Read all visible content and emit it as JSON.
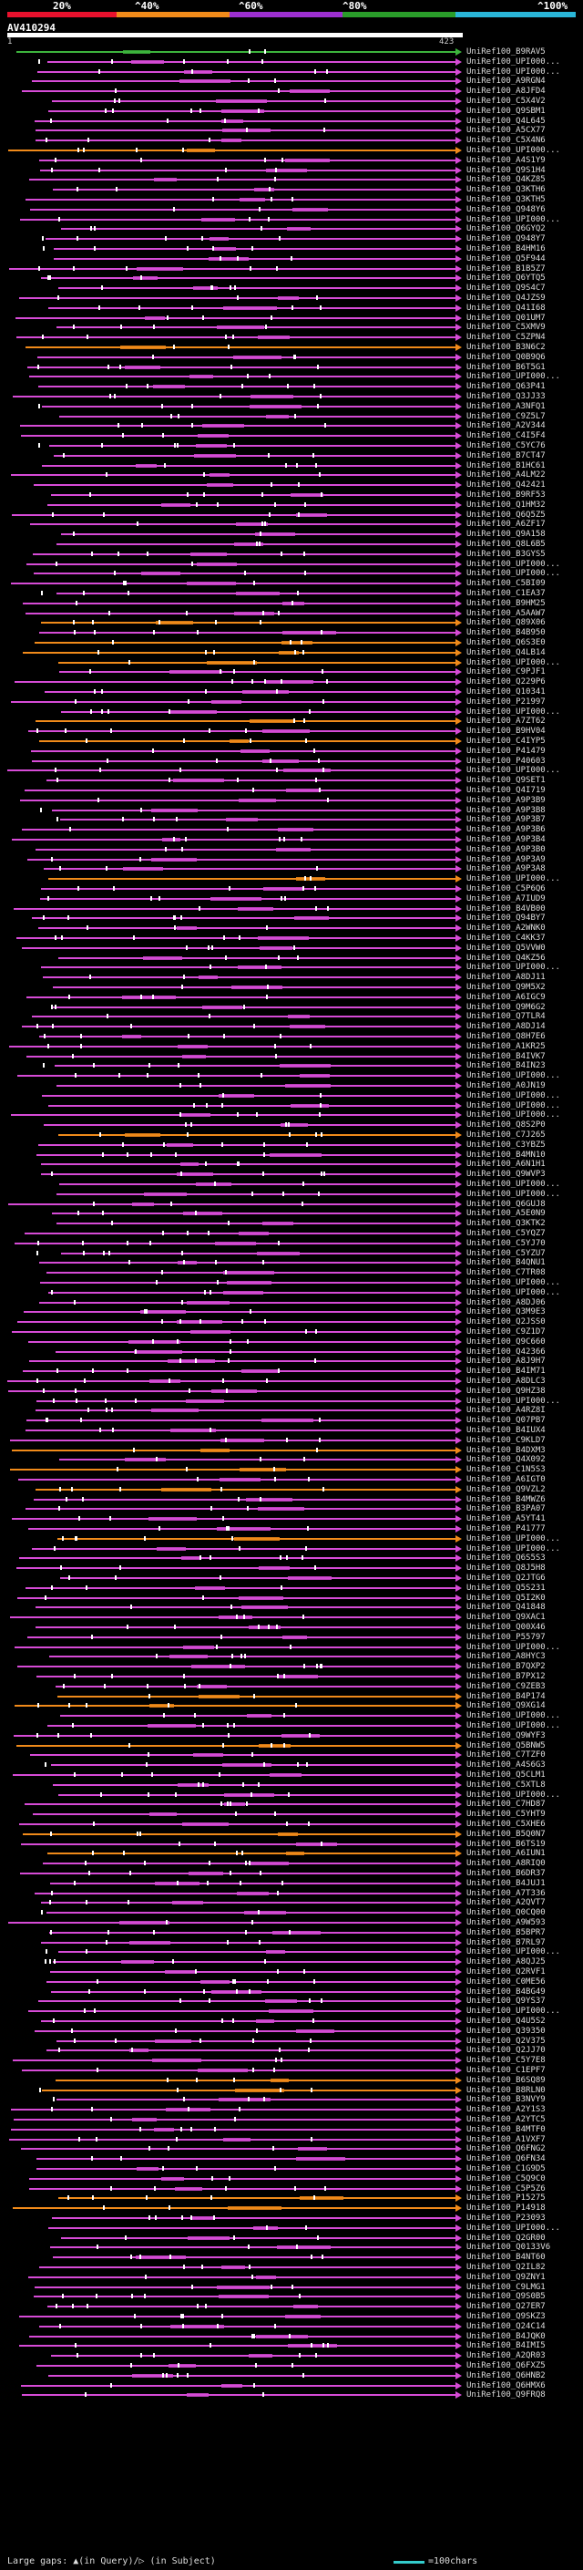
{
  "legend": {
    "labels": [
      "20%",
      "^40%",
      "^60%",
      "^80%",
      "^100%"
    ],
    "colors": [
      "#e8112d",
      "#f28b1a",
      "#9d2fd0",
      "#2a9d2a",
      "#2ab6d8"
    ]
  },
  "query": {
    "name": "AV410294",
    "start": "1",
    "end": "423"
  },
  "colors": {
    "magenta": "#d64bd6",
    "orange": "#f08a1a",
    "green": "#3db43d",
    "white": "#ffffff",
    "arrow": "#d64bd6"
  },
  "hits": [
    {
      "label": "UniRef100_B9RAV5",
      "color": "green"
    },
    {
      "label": "UniRef100_UPI000...",
      "color": "magenta"
    },
    {
      "label": "UniRef100_UPI000...",
      "color": "magenta"
    },
    {
      "label": "UniRef100_A9RGN4",
      "color": "magenta"
    },
    {
      "label": "UniRef100_A8JFD4",
      "color": "magenta"
    },
    {
      "label": "UniRef100_C5X4V2",
      "color": "magenta"
    },
    {
      "label": "UniRef100_Q9SBM1",
      "color": "magenta"
    },
    {
      "label": "UniRef100_Q4L645",
      "color": "magenta"
    },
    {
      "label": "UniRef100_A5CX77",
      "color": "magenta"
    },
    {
      "label": "UniRef100_C5X4N6",
      "color": "magenta"
    },
    {
      "label": "UniRef100_UPI000...",
      "color": "orange"
    },
    {
      "label": "UniRef100_A4S1Y9",
      "color": "magenta"
    },
    {
      "label": "UniRef100_Q9S1H4",
      "color": "magenta"
    },
    {
      "label": "UniRef100_Q4KZ85",
      "color": "magenta"
    },
    {
      "label": "UniRef100_Q3KTH6",
      "color": "magenta"
    },
    {
      "label": "UniRef100_Q3KTH5",
      "color": "magenta"
    },
    {
      "label": "UniRef100_Q948Y6",
      "color": "magenta"
    },
    {
      "label": "UniRef100_UPI000...",
      "color": "magenta"
    },
    {
      "label": "UniRef100_Q6GYQ2",
      "color": "magenta"
    },
    {
      "label": "UniRef100_Q948Y7",
      "color": "magenta"
    },
    {
      "label": "UniRef100_B4HM16",
      "color": "magenta"
    },
    {
      "label": "UniRef100_Q5F944",
      "color": "magenta"
    },
    {
      "label": "UniRef100_B1B5Z7",
      "color": "magenta"
    },
    {
      "label": "UniRef100_Q6YTQ5",
      "color": "magenta"
    },
    {
      "label": "UniRef100_Q9S4C7",
      "color": "magenta"
    },
    {
      "label": "UniRef100_Q4JZS9",
      "color": "magenta"
    },
    {
      "label": "UniRef100_Q41I68",
      "color": "magenta"
    },
    {
      "label": "UniRef100_Q01UM7",
      "color": "magenta"
    },
    {
      "label": "UniRef100_C5XMV9",
      "color": "magenta"
    },
    {
      "label": "UniRef100_C5ZPN4",
      "color": "magenta"
    },
    {
      "label": "UniRef100_B3N6C2",
      "color": "orange"
    },
    {
      "label": "UniRef100_Q0B9Q6",
      "color": "magenta"
    },
    {
      "label": "UniRef100_B6T5G1",
      "color": "magenta"
    },
    {
      "label": "UniRef100_UPI000...",
      "color": "magenta"
    },
    {
      "label": "UniRef100_Q63P41",
      "color": "magenta"
    },
    {
      "label": "UniRef100_Q3JJ33",
      "color": "magenta"
    },
    {
      "label": "UniRef100_A3NFQ1",
      "color": "magenta"
    },
    {
      "label": "UniRef100_C9Z5L7",
      "color": "magenta"
    },
    {
      "label": "UniRef100_A2V344",
      "color": "magenta"
    },
    {
      "label": "UniRef100_C4I5F4",
      "color": "magenta"
    },
    {
      "label": "UniRef100_C5YC76",
      "color": "magenta"
    },
    {
      "label": "UniRef100_B7CT47",
      "color": "magenta"
    },
    {
      "label": "UniRef100_B1HC61",
      "color": "magenta"
    },
    {
      "label": "UniRef100_A4LM22",
      "color": "magenta"
    },
    {
      "label": "UniRef100_Q42421",
      "color": "magenta"
    },
    {
      "label": "UniRef100_B9RF53",
      "color": "magenta"
    },
    {
      "label": "UniRef100_Q1HM32",
      "color": "magenta"
    },
    {
      "label": "UniRef100_Q6Q5Z5",
      "color": "magenta"
    },
    {
      "label": "UniRef100_A6ZF17",
      "color": "magenta"
    },
    {
      "label": "UniRef100_Q9A158",
      "color": "magenta"
    },
    {
      "label": "UniRef100_Q8L6B5",
      "color": "magenta"
    },
    {
      "label": "UniRef100_B3GYS5",
      "color": "magenta"
    },
    {
      "label": "UniRef100_UPI000...",
      "color": "magenta"
    },
    {
      "label": "UniRef100_UPI000...",
      "color": "magenta"
    },
    {
      "label": "UniRef100_C5BI09",
      "color": "magenta"
    },
    {
      "label": "UniRef100_C1EA37",
      "color": "magenta"
    },
    {
      "label": "UniRef100_B9HM25",
      "color": "magenta"
    },
    {
      "label": "UniRef100_A5AAW7",
      "color": "magenta"
    },
    {
      "label": "UniRef100_Q89X06",
      "color": "orange"
    },
    {
      "label": "UniRef100_B4B950",
      "color": "magenta"
    },
    {
      "label": "UniRef100_Q6S3E0",
      "color": "orange"
    },
    {
      "label": "UniRef100_Q4LB14",
      "color": "orange"
    },
    {
      "label": "UniRef100_UPI000...",
      "color": "orange"
    },
    {
      "label": "UniRef100_C9PJF1",
      "color": "magenta"
    },
    {
      "label": "UniRef100_Q229P6",
      "color": "magenta"
    },
    {
      "label": "UniRef100_Q10341",
      "color": "magenta"
    },
    {
      "label": "UniRef100_P21997",
      "color": "magenta"
    },
    {
      "label": "UniRef100_UPI000...",
      "color": "magenta"
    },
    {
      "label": "UniRef100_A7ZT62",
      "color": "orange"
    },
    {
      "label": "UniRef100_B9HV04",
      "color": "magenta"
    },
    {
      "label": "UniRef100_C4IYP5",
      "color": "orange"
    },
    {
      "label": "UniRef100_P41479",
      "color": "magenta"
    },
    {
      "label": "UniRef100_P40603",
      "color": "magenta"
    },
    {
      "label": "UniRef100_UPI000...",
      "color": "magenta"
    },
    {
      "label": "UniRef100_Q9SET1",
      "color": "magenta"
    },
    {
      "label": "UniRef100_Q4I719",
      "color": "magenta"
    },
    {
      "label": "UniRef100_A9P3B9",
      "color": "magenta"
    },
    {
      "label": "UniRef100_A9P3B8",
      "color": "magenta"
    },
    {
      "label": "UniRef100_A9P3B7",
      "color": "magenta"
    },
    {
      "label": "UniRef100_A9P3B6",
      "color": "magenta"
    },
    {
      "label": "UniRef100_A9P3B4",
      "color": "magenta"
    },
    {
      "label": "UniRef100_A9P3B0",
      "color": "magenta"
    },
    {
      "label": "UniRef100_A9P3A9",
      "color": "magenta"
    },
    {
      "label": "UniRef100_A9P3A8",
      "color": "magenta"
    },
    {
      "label": "UniRef100_UPI000...",
      "color": "orange"
    },
    {
      "label": "UniRef100_C5P6Q6",
      "color": "magenta"
    },
    {
      "label": "UniRef100_A7IUD9",
      "color": "magenta"
    },
    {
      "label": "UniRef100_B4VB00",
      "color": "magenta"
    },
    {
      "label": "UniRef100_Q94BY7",
      "color": "magenta"
    },
    {
      "label": "UniRef100_A2WNK0",
      "color": "magenta"
    },
    {
      "label": "UniRef100_C4KK37",
      "color": "magenta"
    },
    {
      "label": "UniRef100_Q5VVW0",
      "color": "magenta"
    },
    {
      "label": "UniRef100_Q4KZ56",
      "color": "magenta"
    },
    {
      "label": "UniRef100_UPI000...",
      "color": "magenta"
    },
    {
      "label": "UniRef100_A8DJ11",
      "color": "magenta"
    },
    {
      "label": "UniRef100_Q9M5X2",
      "color": "magenta"
    },
    {
      "label": "UniRef100_A6IGC9",
      "color": "magenta"
    },
    {
      "label": "UniRef100_Q9M6G2",
      "color": "magenta"
    },
    {
      "label": "UniRef100_Q7TLR4",
      "color": "magenta"
    },
    {
      "label": "UniRef100_A8DJ14",
      "color": "magenta"
    },
    {
      "label": "UniRef100_Q8H7E6",
      "color": "magenta"
    },
    {
      "label": "UniRef100_A1KR25",
      "color": "magenta"
    },
    {
      "label": "UniRef100_B4IVK7",
      "color": "magenta"
    },
    {
      "label": "UniRef100_B4IN23",
      "color": "magenta"
    },
    {
      "label": "UniRef100_UPI000...",
      "color": "magenta"
    },
    {
      "label": "UniRef100_A0JN19",
      "color": "magenta"
    },
    {
      "label": "UniRef100_UPI000...",
      "color": "magenta"
    },
    {
      "label": "UniRef100_UPI000...",
      "color": "magenta"
    },
    {
      "label": "UniRef100_UPI000...",
      "color": "magenta"
    },
    {
      "label": "UniRef100_Q8S2P0",
      "color": "magenta"
    },
    {
      "label": "UniRef100_C7J265",
      "color": "orange"
    },
    {
      "label": "UniRef100_C3YBZ5",
      "color": "magenta"
    },
    {
      "label": "UniRef100_B4MN10",
      "color": "magenta"
    },
    {
      "label": "UniRef100_A6N1H1",
      "color": "magenta"
    },
    {
      "label": "UniRef100_Q9WVP3",
      "color": "magenta"
    },
    {
      "label": "UniRef100_UPI000...",
      "color": "magenta"
    },
    {
      "label": "UniRef100_UPI000...",
      "color": "magenta"
    },
    {
      "label": "UniRef100_Q6GUJ8",
      "color": "magenta"
    },
    {
      "label": "UniRef100_A5E0N9",
      "color": "magenta"
    },
    {
      "label": "UniRef100_Q3KTK2",
      "color": "magenta"
    },
    {
      "label": "UniRef100_C5YQZ7",
      "color": "magenta"
    },
    {
      "label": "UniRef100_C5YJ70",
      "color": "magenta"
    },
    {
      "label": "UniRef100_C5YZU7",
      "color": "magenta"
    },
    {
      "label": "UniRef100_B4QNU1",
      "color": "magenta"
    },
    {
      "label": "UniRef100_C7TR08",
      "color": "magenta"
    },
    {
      "label": "UniRef100_UPI000...",
      "color": "magenta"
    },
    {
      "label": "UniRef100_UPI000...",
      "color": "magenta"
    },
    {
      "label": "UniRef100_A8DJ06",
      "color": "magenta"
    },
    {
      "label": "UniRef100_Q3M9E3",
      "color": "magenta"
    },
    {
      "label": "UniRef100_Q2JSS0",
      "color": "magenta"
    },
    {
      "label": "UniRef100_C9Z1D7",
      "color": "magenta"
    },
    {
      "label": "UniRef100_Q9C660",
      "color": "magenta"
    },
    {
      "label": "UniRef100_Q42366",
      "color": "magenta"
    },
    {
      "label": "UniRef100_A8J9H7",
      "color": "magenta"
    },
    {
      "label": "UniRef100_B4IM71",
      "color": "magenta"
    },
    {
      "label": "UniRef100_A8DLC3",
      "color": "magenta"
    },
    {
      "label": "UniRef100_Q9HZ38",
      "color": "magenta"
    },
    {
      "label": "UniRef100_UPI000...",
      "color": "magenta"
    },
    {
      "label": "UniRef100_A4RZ8I",
      "color": "magenta"
    },
    {
      "label": "UniRef100_Q07PB7",
      "color": "magenta"
    },
    {
      "label": "UniRef100_B4IUX4",
      "color": "magenta"
    },
    {
      "label": "UniRef100_C9KLD7",
      "color": "magenta"
    },
    {
      "label": "UniRef100_B4DXM3",
      "color": "orange"
    },
    {
      "label": "UniRef100_Q4X092",
      "color": "magenta"
    },
    {
      "label": "UniRef100_C1N5S3",
      "color": "orange"
    },
    {
      "label": "UniRef100_A6IGT0",
      "color": "magenta"
    },
    {
      "label": "UniRef100_Q9VZL2",
      "color": "orange"
    },
    {
      "label": "UniRef100_B4MWZ6",
      "color": "magenta"
    },
    {
      "label": "UniRef100_B3PA07",
      "color": "magenta"
    },
    {
      "label": "UniRef100_A5YT41",
      "color": "magenta"
    },
    {
      "label": "UniRef100_P41777",
      "color": "magenta"
    },
    {
      "label": "UniRef100_UPI000...",
      "color": "orange"
    },
    {
      "label": "UniRef100_UPI000...",
      "color": "magenta"
    },
    {
      "label": "UniRef100_Q6S5S3",
      "color": "magenta"
    },
    {
      "label": "UniRef100_Q8J5H8",
      "color": "magenta"
    },
    {
      "label": "UniRef100_Q2JTG6",
      "color": "magenta"
    },
    {
      "label": "UniRef100_Q5S231",
      "color": "magenta"
    },
    {
      "label": "UniRef100_Q5I2K0",
      "color": "magenta"
    },
    {
      "label": "UniRef100_Q41848",
      "color": "magenta"
    },
    {
      "label": "UniRef100_Q9XAC1",
      "color": "magenta"
    },
    {
      "label": "UniRef100_Q00X46",
      "color": "magenta"
    },
    {
      "label": "UniRef100_P55797",
      "color": "magenta"
    },
    {
      "label": "UniRef100_UPI000...",
      "color": "magenta"
    },
    {
      "label": "UniRef100_A8HYC3",
      "color": "magenta"
    },
    {
      "label": "UniRef100_B7QXP2",
      "color": "magenta"
    },
    {
      "label": "UniRef100_B7PX12",
      "color": "magenta"
    },
    {
      "label": "UniRef100_C9ZEB3",
      "color": "magenta"
    },
    {
      "label": "UniRef100_B4P174",
      "color": "orange"
    },
    {
      "label": "UniRef100_Q9XG14",
      "color": "orange"
    },
    {
      "label": "UniRef100_UPI000...",
      "color": "magenta"
    },
    {
      "label": "UniRef100_UPI000...",
      "color": "magenta"
    },
    {
      "label": "UniRef100_Q9WYF3",
      "color": "magenta"
    },
    {
      "label": "UniRef100_Q5BNW5",
      "color": "orange"
    },
    {
      "label": "UniRef100_C7TZF0",
      "color": "magenta"
    },
    {
      "label": "UniRef100_A4S6G3",
      "color": "magenta"
    },
    {
      "label": "UniRef100_Q5CLM1",
      "color": "magenta"
    },
    {
      "label": "UniRef100_C5XTL8",
      "color": "magenta"
    },
    {
      "label": "UniRef100_UPI000...",
      "color": "magenta"
    },
    {
      "label": "UniRef100_C7HD87",
      "color": "magenta"
    },
    {
      "label": "UniRef100_C5YHT9",
      "color": "magenta"
    },
    {
      "label": "UniRef100_C5XHE6",
      "color": "magenta"
    },
    {
      "label": "UniRef100_B5Q0N7",
      "color": "orange"
    },
    {
      "label": "UniRef100_B6TS19",
      "color": "magenta"
    },
    {
      "label": "UniRef100_A6IUN1",
      "color": "orange"
    },
    {
      "label": "UniRef100_A8RIQ0",
      "color": "magenta"
    },
    {
      "label": "UniRef100_B6DR37",
      "color": "magenta"
    },
    {
      "label": "UniRef100_B4JUJ1",
      "color": "magenta"
    },
    {
      "label": "UniRef100_A7T336",
      "color": "magenta"
    },
    {
      "label": "UniRef100_A2QVT7",
      "color": "magenta"
    },
    {
      "label": "UniRef100_Q0CQ00",
      "color": "magenta"
    },
    {
      "label": "UniRef100_A9W593",
      "color": "magenta"
    },
    {
      "label": "UniRef100_B5BPR7",
      "color": "magenta"
    },
    {
      "label": "UniRef100_B7RL97",
      "color": "magenta"
    },
    {
      "label": "UniRef100_UPI000...",
      "color": "magenta"
    },
    {
      "label": "UniRef100_A8QJ25",
      "color": "magenta"
    },
    {
      "label": "UniRef100_Q2RVF1",
      "color": "magenta"
    },
    {
      "label": "UniRef100_C0ME56",
      "color": "magenta"
    },
    {
      "label": "UniRef100_B4BG49",
      "color": "magenta"
    },
    {
      "label": "UniRef100_Q9YS37",
      "color": "magenta"
    },
    {
      "label": "UniRef100_UPI000...",
      "color": "magenta"
    },
    {
      "label": "UniRef100_Q4U5S2",
      "color": "magenta"
    },
    {
      "label": "UniRef100_Q39350",
      "color": "magenta"
    },
    {
      "label": "UniRef100_Q2V375",
      "color": "magenta"
    },
    {
      "label": "UniRef100_Q2JJ70",
      "color": "magenta"
    },
    {
      "label": "UniRef100_C5Y7E8",
      "color": "magenta"
    },
    {
      "label": "UniRef100_C1EPF7",
      "color": "magenta"
    },
    {
      "label": "UniRef100_B6SQ89",
      "color": "orange"
    },
    {
      "label": "UniRef100_B8RLN0",
      "color": "orange"
    },
    {
      "label": "UniRef100_B3NVY9",
      "color": "magenta"
    },
    {
      "label": "UniRef100_A2Y1S3",
      "color": "magenta"
    },
    {
      "label": "UniRef100_A2YTC5",
      "color": "magenta"
    },
    {
      "label": "UniRef100_B4MTF0",
      "color": "magenta"
    },
    {
      "label": "UniRef100_A1VXF7",
      "color": "magenta"
    },
    {
      "label": "UniRef100_Q6FNG2",
      "color": "magenta"
    },
    {
      "label": "UniRef100_Q6FN34",
      "color": "magenta"
    },
    {
      "label": "UniRef100_C1G9D5",
      "color": "magenta"
    },
    {
      "label": "UniRef100_C5Q9C0",
      "color": "magenta"
    },
    {
      "label": "UniRef100_C5P5Z6",
      "color": "magenta"
    },
    {
      "label": "UniRef100_P15275",
      "color": "orange"
    },
    {
      "label": "UniRef100_P14918",
      "color": "orange"
    },
    {
      "label": "UniRef100_P23093",
      "color": "magenta"
    },
    {
      "label": "UniRef100_UPI000...",
      "color": "magenta"
    },
    {
      "label": "UniRef100_Q2GR00",
      "color": "magenta"
    },
    {
      "label": "UniRef100_Q0133V6",
      "color": "magenta"
    },
    {
      "label": "UniRef100_B4NT60",
      "color": "magenta"
    },
    {
      "label": "UniRef100_Q2IL82",
      "color": "magenta"
    },
    {
      "label": "UniRef100_Q9ZNY1",
      "color": "magenta"
    },
    {
      "label": "UniRef100_C9LMG1",
      "color": "magenta"
    },
    {
      "label": "UniRef100_Q9S0B5",
      "color": "magenta"
    },
    {
      "label": "UniRef100_Q27ER7",
      "color": "magenta"
    },
    {
      "label": "UniRef100_Q9SKZ3",
      "color": "magenta"
    },
    {
      "label": "UniRef100_Q24C14",
      "color": "magenta"
    },
    {
      "label": "UniRef100_B4JQK0",
      "color": "magenta"
    },
    {
      "label": "UniRef100_B4IMI5",
      "color": "magenta"
    },
    {
      "label": "UniRef100_A2QR03",
      "color": "magenta"
    },
    {
      "label": "UniRef100_Q6FXZ5",
      "color": "magenta"
    },
    {
      "label": "UniRef100_Q6HNB2",
      "color": "magenta"
    },
    {
      "label": "UniRef100_Q6HMX6",
      "color": "magenta"
    },
    {
      "label": "UniRef100_Q9FRQ8",
      "color": "magenta"
    }
  ],
  "footer": {
    "gaps_text": "Large gaps: ▲(in Query)/▷ (in Subject)",
    "scale_text": "=100chars"
  }
}
